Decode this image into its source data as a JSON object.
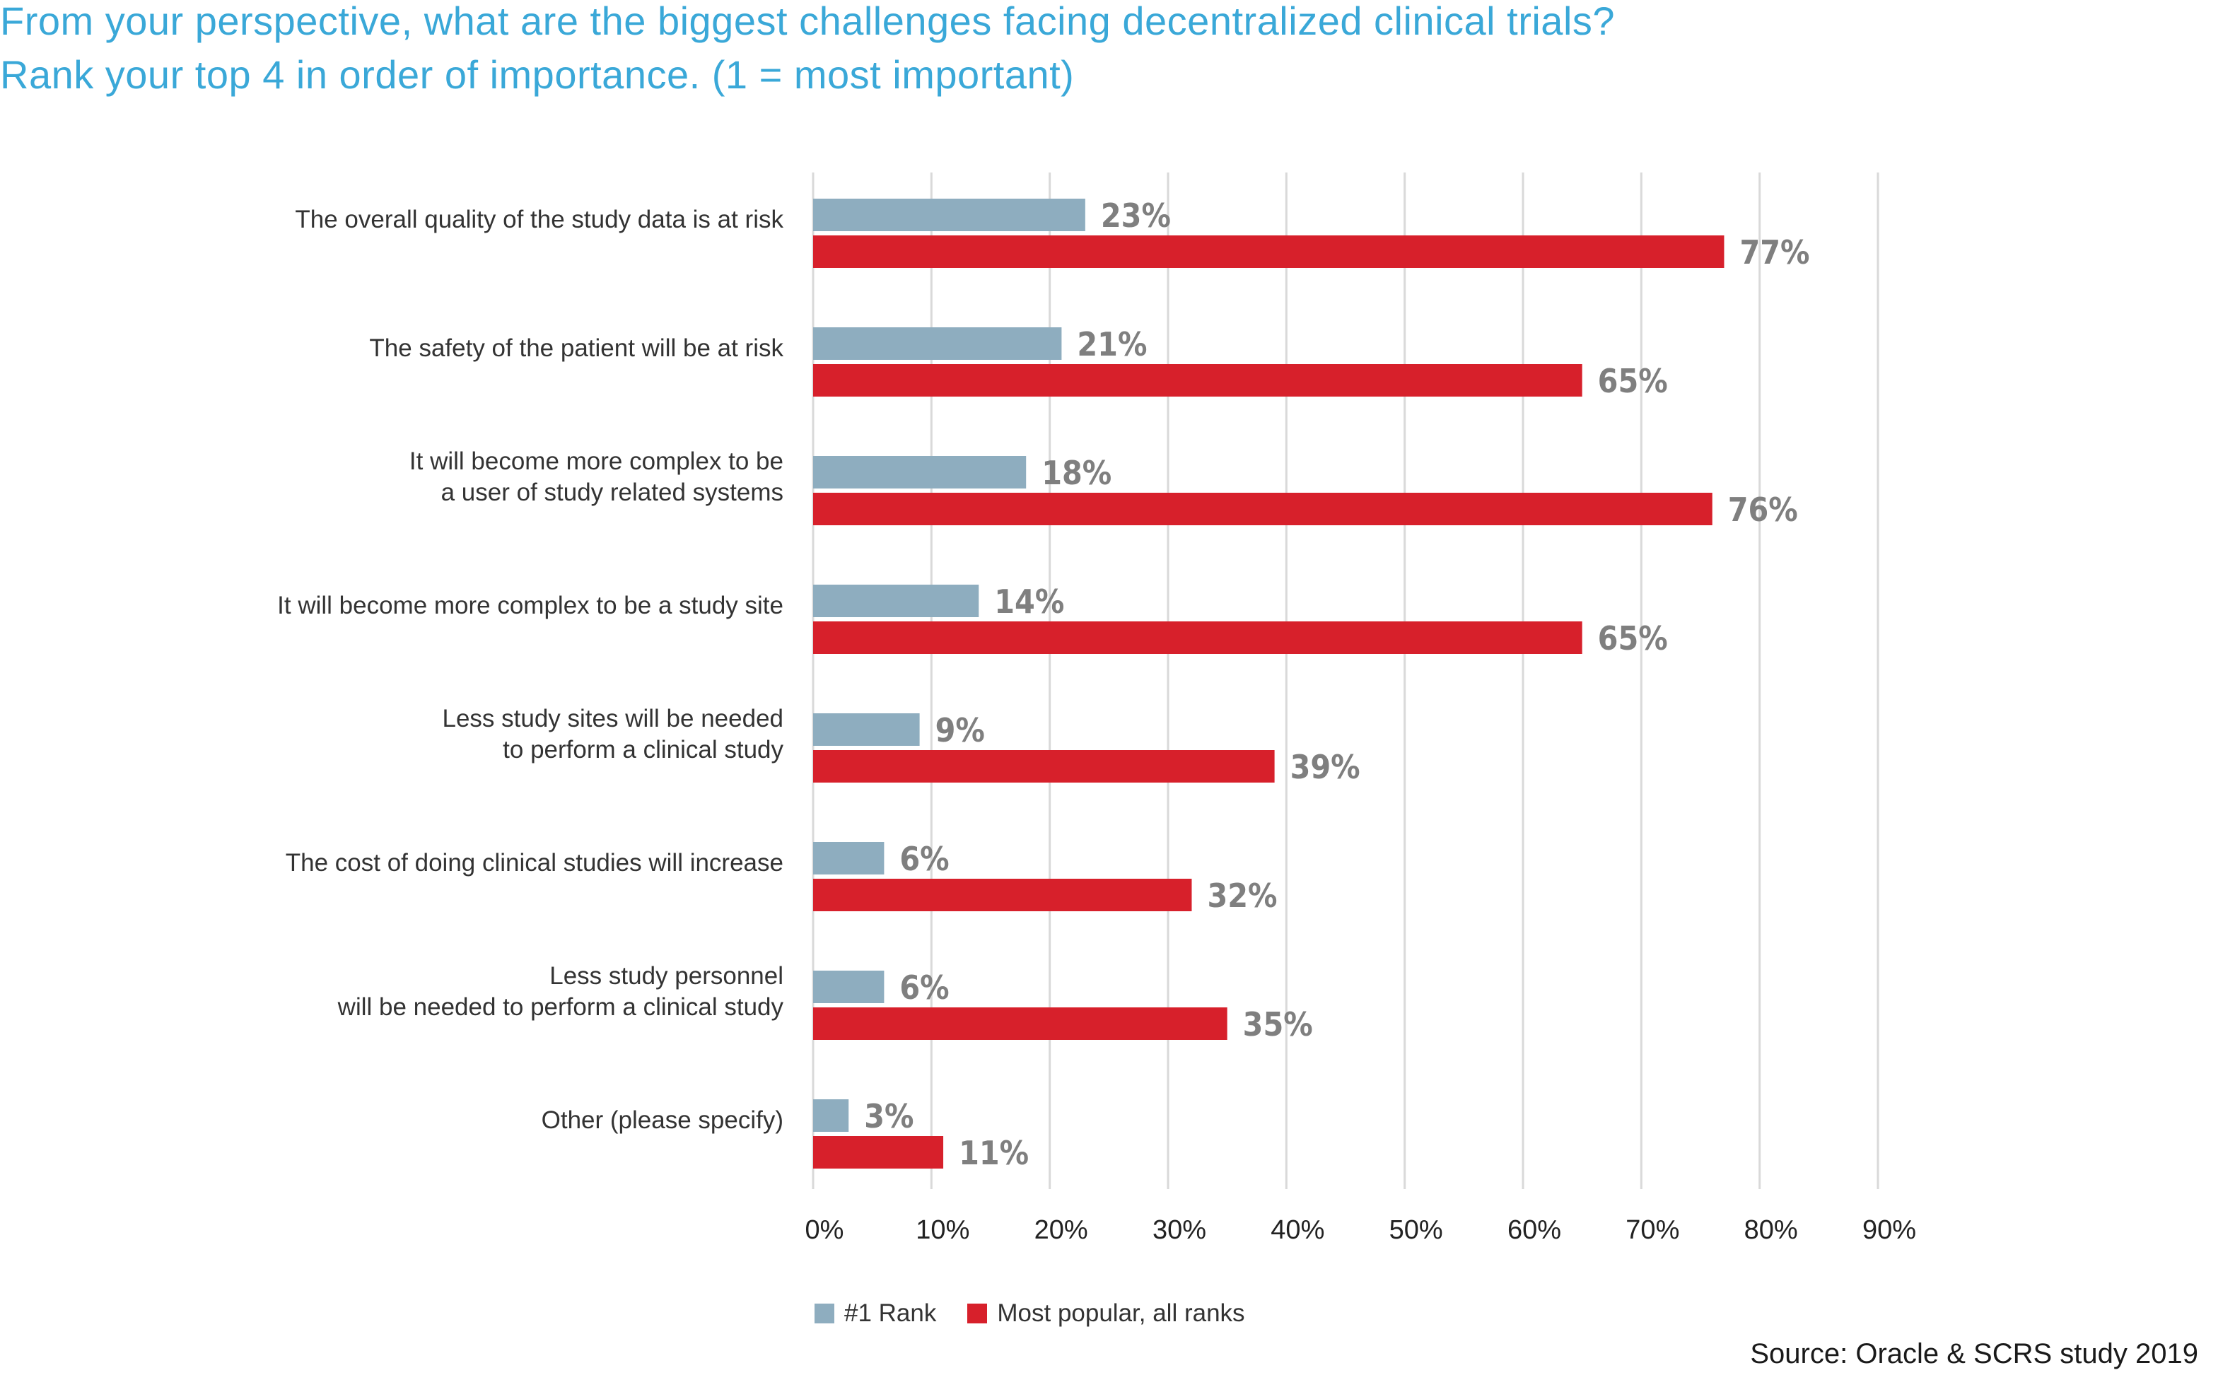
{
  "title_lines": [
    "From your perspective, what are the biggest challenges facing decentralized clinical trials?",
    "Rank your top 4 in order of importance. (1 = most important)"
  ],
  "colors": {
    "rank1": "#8eadbf",
    "all_ranks": "#d7202b",
    "title": "#3aa8d8",
    "grid": "#d9d9d9",
    "value_label": "#7f7f7f"
  },
  "chart_data": {
    "type": "bar",
    "orientation": "horizontal",
    "title": "From your perspective, what are the biggest challenges facing decentralized clinical trials? Rank your top 4 in order of importance. (1 = most important)",
    "categories": [
      [
        "The overall quality of the study data is at risk"
      ],
      [
        "The safety of the patient will be at risk"
      ],
      [
        "It will become more complex to be",
        "a user of study related systems"
      ],
      [
        "It will become more complex to be a study site"
      ],
      [
        "Less study sites will be needed",
        "to perform a clinical study"
      ],
      [
        "The cost of doing clinical studies will increase"
      ],
      [
        "Less study personnel",
        "will be needed to perform a clinical study"
      ],
      [
        "Other (please specify)"
      ]
    ],
    "series": [
      {
        "name": "#1 Rank",
        "color": "#8eadbf",
        "values": [
          23,
          21,
          18,
          14,
          9,
          6,
          6,
          3
        ],
        "labels": [
          "23%",
          "21%",
          "18%",
          "14%",
          "9%",
          "6%",
          "6%",
          "3%"
        ]
      },
      {
        "name": "Most popular, all ranks",
        "color": "#d7202b",
        "values": [
          77,
          65,
          76,
          65,
          39,
          32,
          35,
          11
        ],
        "labels": [
          "77%",
          "65%",
          "76%",
          "65%",
          "39%",
          "32%",
          "35%",
          "11%"
        ]
      }
    ],
    "xlim": [
      0,
      90
    ],
    "xticks": [
      0,
      10,
      20,
      30,
      40,
      50,
      60,
      70,
      80,
      90
    ],
    "xtick_labels": [
      "0%",
      "10%",
      "20%",
      "30%",
      "40%",
      "50%",
      "60%",
      "70%",
      "80%",
      "90%"
    ],
    "grid": true,
    "legend_position": "bottom"
  },
  "legend": {
    "rank1_label": "#1 Rank",
    "all_label": "Most popular, all ranks"
  },
  "source": "Source: Oracle & SCRS study 2019"
}
